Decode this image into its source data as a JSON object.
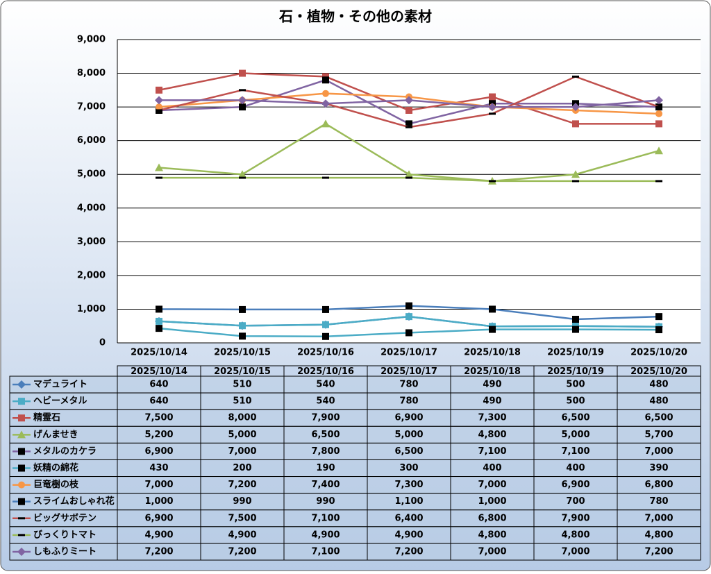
{
  "chart_data": {
    "type": "line",
    "title": "石・植物・その他の素材",
    "categories": [
      "2025/10/14",
      "2025/10/15",
      "2025/10/16",
      "2025/10/17",
      "2025/10/18",
      "2025/10/19",
      "2025/10/20"
    ],
    "ylim": [
      0,
      9000
    ],
    "yticks": [
      0,
      {
        "value": 1000,
        "label": "1,000"
      },
      {
        "value": 2000,
        "label": "2,000"
      },
      {
        "value": 3000,
        "label": "3,000"
      },
      {
        "value": 4000,
        "label": "4,000"
      },
      {
        "value": 5000,
        "label": "5,000"
      },
      {
        "value": 6000,
        "label": "6,000"
      },
      {
        "value": 7000,
        "label": "7,000"
      },
      {
        "value": 8000,
        "label": "8,000"
      },
      {
        "value": 9000,
        "label": "9,000"
      }
    ],
    "grid": true,
    "series": [
      {
        "name": "マデュライト",
        "color": "#4a7ebb",
        "marker": "diamond",
        "marker_color": "#4a7ebb",
        "values": [
          640,
          510,
          540,
          780,
          490,
          500,
          480
        ],
        "value_labels": [
          "640",
          "510",
          "540",
          "780",
          "490",
          "500",
          "480"
        ]
      },
      {
        "name": "ヘビーメタル",
        "color": "#4bacc6",
        "marker": "square",
        "marker_color": "#4bacc6",
        "values": [
          640,
          510,
          540,
          780,
          490,
          500,
          480
        ],
        "value_labels": [
          "640",
          "510",
          "540",
          "780",
          "490",
          "500",
          "480"
        ]
      },
      {
        "name": "精霊石",
        "color": "#c0504d",
        "marker": "square",
        "marker_color": "#c0504d",
        "values": [
          7500,
          8000,
          7900,
          6900,
          7300,
          6500,
          6500
        ],
        "value_labels": [
          "7,500",
          "8,000",
          "7,900",
          "6,900",
          "7,300",
          "6,500",
          "6,500"
        ]
      },
      {
        "name": "げんませき",
        "color": "#9bbb59",
        "marker": "triangle",
        "marker_color": "#9bbb59",
        "values": [
          5200,
          5000,
          6500,
          5000,
          4800,
          5000,
          5700
        ],
        "value_labels": [
          "5,200",
          "5,000",
          "6,500",
          "5,000",
          "4,800",
          "5,000",
          "5,700"
        ]
      },
      {
        "name": "メタルのカケラ",
        "color": "#8064a2",
        "marker": "square",
        "marker_color": "#000000",
        "values": [
          6900,
          7000,
          7800,
          6500,
          7100,
          7100,
          7000
        ],
        "value_labels": [
          "6,900",
          "7,000",
          "7,800",
          "6,500",
          "7,100",
          "7,100",
          "7,000"
        ]
      },
      {
        "name": "妖精の綿花",
        "color": "#4bacc6",
        "marker": "square",
        "marker_color": "#000000",
        "values": [
          430,
          200,
          190,
          300,
          400,
          400,
          390
        ],
        "value_labels": [
          "430",
          "200",
          "190",
          "300",
          "400",
          "400",
          "390"
        ]
      },
      {
        "name": "巨竜樹の枝",
        "color": "#f79646",
        "marker": "circle",
        "marker_color": "#f79646",
        "values": [
          7000,
          7200,
          7400,
          7300,
          7000,
          6900,
          6800
        ],
        "value_labels": [
          "7,000",
          "7,200",
          "7,400",
          "7,300",
          "7,000",
          "6,900",
          "6,800"
        ]
      },
      {
        "name": "スライムおしゃれ花",
        "color": "#4a7ebb",
        "marker": "square",
        "marker_color": "#000000",
        "values": [
          1000,
          990,
          990,
          1100,
          1000,
          700,
          780
        ],
        "value_labels": [
          "1,000",
          "990",
          "990",
          "1,100",
          "1,000",
          "700",
          "780"
        ]
      },
      {
        "name": "ビッグサボテン",
        "color": "#c0504d",
        "marker": "dash",
        "marker_color": "#000000",
        "values": [
          6900,
          7500,
          7100,
          6400,
          6800,
          7900,
          7000
        ],
        "value_labels": [
          "6,900",
          "7,500",
          "7,100",
          "6,400",
          "6,800",
          "7,900",
          "7,000"
        ]
      },
      {
        "name": "びっくりトマト",
        "color": "#9bbb59",
        "marker": "dash",
        "marker_color": "#000000",
        "values": [
          4900,
          4900,
          4900,
          4900,
          4800,
          4800,
          4800
        ],
        "value_labels": [
          "4,900",
          "4,900",
          "4,900",
          "4,900",
          "4,800",
          "4,800",
          "4,800"
        ]
      },
      {
        "name": "しもふりミート",
        "color": "#8064a2",
        "marker": "diamond",
        "marker_color": "#8064a2",
        "values": [
          7200,
          7200,
          7100,
          7200,
          7000,
          7000,
          7200
        ],
        "value_labels": [
          "7,200",
          "7,200",
          "7,100",
          "7,200",
          "7,000",
          "7,000",
          "7,200"
        ]
      }
    ]
  }
}
